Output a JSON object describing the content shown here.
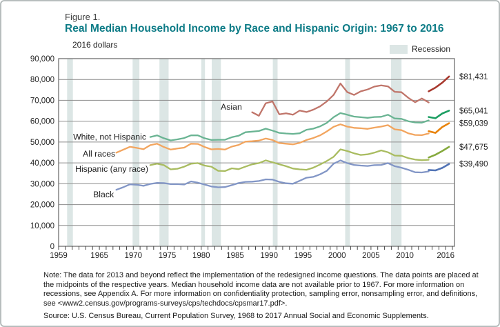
{
  "figure": {
    "label": "Figure 1.",
    "title": "Real Median Household Income by Race and Hispanic Origin: 1967 to 2016"
  },
  "chart_data": {
    "type": "line",
    "title": "Real Median Household Income by Race and Hispanic Origin: 1967 to 2016",
    "unit_label": "2016 dollars",
    "legend": {
      "recession_label": "Recession",
      "recession_color": "#dce6e5",
      "position": "top-right"
    },
    "grid": "horizontal",
    "y_axis": {
      "min": 0,
      "max": 90000,
      "tick_step": 10000,
      "tick_labels": [
        "0",
        "10,000",
        "20,000",
        "30,000",
        "40,000",
        "50,000",
        "60,000",
        "70,000",
        "80,000",
        "90,000"
      ]
    },
    "x_axis": {
      "range": [
        1959,
        2017.3
      ],
      "minor_tick_start": 1959,
      "minor_tick_end": 2017,
      "labeled_years": [
        1959,
        1965,
        1970,
        1975,
        1980,
        1985,
        1990,
        1995,
        2000,
        2005,
        2010,
        2016
      ],
      "note": "data points placed at midpoints of years"
    },
    "recessions": [
      [
        1960.25,
        1961.1
      ],
      [
        1969.9,
        1970.9
      ],
      [
        1973.85,
        1975.2
      ],
      [
        1980.0,
        1980.55
      ],
      [
        1981.55,
        1982.9
      ],
      [
        1990.55,
        1991.25
      ],
      [
        2001.2,
        2001.9
      ],
      [
        2007.95,
        2009.5
      ]
    ],
    "series": [
      {
        "id": "asian",
        "label": "Asian",
        "color": "#c0756a",
        "color_redesigned": "#a8392e",
        "start_year": 1987,
        "values": [
          64300,
          62600,
          68600,
          69500,
          63300,
          63800,
          63100,
          65100,
          64400,
          65500,
          67100,
          69500,
          72600,
          78100,
          74000,
          72600,
          74300,
          75200,
          76600,
          77200,
          76700,
          74100,
          73900,
          71200,
          69100,
          70900,
          69000
        ],
        "redesigned_start_year": 2013,
        "redesigned_values": [
          74300,
          76100,
          78500,
          81431
        ],
        "end_label": "$81,431",
        "end_value": 81431,
        "name_label": {
          "year": 1986.0,
          "value": 66800
        }
      },
      {
        "id": "white-not-hispanic",
        "label": "White, not Hispanic",
        "color": "#6ab493",
        "color_redesigned": "#1c9e62",
        "start_year": 1972,
        "values": [
          52400,
          53200,
          51800,
          50800,
          51300,
          51900,
          53200,
          53200,
          51800,
          51000,
          51100,
          51100,
          52300,
          53000,
          54700,
          55000,
          55300,
          56400,
          55500,
          54400,
          54100,
          53900,
          54200,
          55900,
          56400,
          57500,
          59200,
          61900,
          63900,
          63100,
          62200,
          61900,
          61600,
          62000,
          62100,
          63100,
          61300,
          61100,
          60000,
          59400,
          59300,
          60400
        ],
        "redesigned_start_year": 2013,
        "redesigned_values": [
          62000,
          61400,
          63700,
          65041
        ],
        "end_label": "$65,041",
        "end_value": 65041,
        "name_label": {
          "year": 1971.9,
          "value": 52400
        }
      },
      {
        "id": "all-races",
        "label": "All races",
        "color": "#f2a55f",
        "color_redesigned": "#e8830c",
        "start_year": 1967,
        "values": [
          44900,
          46300,
          47700,
          47200,
          46600,
          48500,
          49200,
          47600,
          46400,
          46900,
          47300,
          49200,
          49100,
          47600,
          46500,
          46700,
          46400,
          47800,
          48600,
          50200,
          50400,
          50700,
          51700,
          51000,
          49500,
          49200,
          48900,
          49600,
          51000,
          51900,
          53200,
          55100,
          57300,
          58500,
          57400,
          56800,
          56600,
          56300,
          56900,
          57400,
          58100,
          56100,
          55700,
          54200,
          53400,
          53300,
          54100
        ],
        "redesigned_start_year": 2013,
        "redesigned_values": [
          55200,
          54400,
          57200,
          59039
        ],
        "end_label": "$59,039",
        "end_value": 59039,
        "name_label": {
          "year": 1967.35,
          "value": 44300
        }
      },
      {
        "id": "hispanic",
        "label": "Hispanic (any race)",
        "color": "#a9bc60",
        "color_redesigned": "#85a93d",
        "start_year": 1972,
        "values": [
          38900,
          39600,
          38900,
          36900,
          37200,
          38200,
          39600,
          39900,
          38700,
          38200,
          36200,
          36100,
          37400,
          37000,
          38200,
          39300,
          39900,
          41200,
          40300,
          39300,
          38400,
          37300,
          36900,
          36700,
          37700,
          39200,
          40900,
          42900,
          46500,
          45700,
          44600,
          43800,
          44100,
          44900,
          46000,
          45100,
          43500,
          43400,
          42300,
          41600,
          41300,
          41500
        ],
        "redesigned_start_year": 2013,
        "redesigned_values": [
          42600,
          43900,
          45700,
          47675
        ],
        "end_label": "$47,675",
        "end_value": 47675,
        "name_label": {
          "year": 1972.2,
          "value": 37100
        }
      },
      {
        "id": "black",
        "label": "Black",
        "color": "#8296c6",
        "color_redesigned": "#5274b6",
        "start_year": 1967,
        "values": [
          27100,
          28300,
          29700,
          29500,
          29000,
          29900,
          30400,
          30300,
          29800,
          29800,
          29600,
          31100,
          30500,
          29600,
          28700,
          28300,
          28400,
          29300,
          30300,
          30900,
          31000,
          31300,
          32100,
          32000,
          30900,
          30200,
          30000,
          31400,
          32900,
          33300,
          34500,
          36200,
          39600,
          41200,
          39900,
          39000,
          38700,
          38500,
          38900,
          39000,
          39900,
          38400,
          37700,
          36700,
          35500,
          35400,
          35900
        ],
        "redesigned_start_year": 2013,
        "redesigned_values": [
          36600,
          36400,
          37600,
          39490
        ],
        "end_label": "$39,490",
        "end_value": 39490,
        "name_label": {
          "year": 1967.15,
          "value": 24800
        }
      }
    ]
  },
  "notes": {
    "note": "Note: The data for 2013 and beyond reflect the implementation of the redesigned income questions. The data points are placed at the midpoints of the respective years. Median household income data are not available prior to 1967. For more information on recessions, see Appendix A. For more information on confidentiality protection, sampling error, nonsampling error, and definitions, see <www2.census.gov/programs-surveys/cps/techdocs/cpsmar17.pdf>.",
    "source": "Source: U.S. Census Bureau, Current Population Survey, 1968 to 2017 Annual Social and Economic Supplements."
  }
}
